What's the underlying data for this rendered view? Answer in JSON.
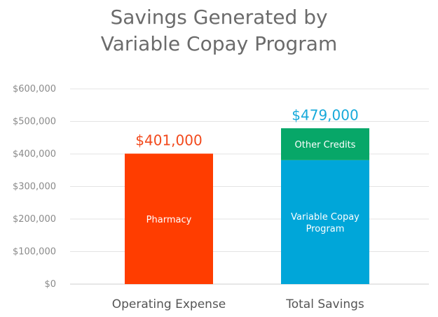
{
  "chart_data": {
    "type": "bar",
    "stacked": true,
    "title_lines": [
      "Savings Generated by",
      "Variable Copay Program"
    ],
    "xlabel": "",
    "ylabel": "",
    "ylim": [
      0,
      600000
    ],
    "y_ticks": [
      0,
      100000,
      200000,
      300000,
      400000,
      500000,
      600000
    ],
    "y_tick_labels": [
      "$0",
      "$100,000",
      "$200,000",
      "$300,000",
      "$400,000",
      "$500,000",
      "$600,000"
    ],
    "grid": true,
    "legend": "none",
    "categories": [
      "Operating Expense",
      "Total Savings"
    ],
    "bars": [
      {
        "category": "Operating Expense",
        "total_label": "$401,000",
        "total_color": "#f2491c",
        "segments": [
          {
            "label": "Pharmacy",
            "value": 401000,
            "color": "#ff3d00"
          }
        ]
      },
      {
        "category": "Total Savings",
        "total_label": "$479,000",
        "total_color": "#16a9da",
        "segments": [
          {
            "label": "Variable Copay Program",
            "value": 381000,
            "color": "#00a6d9"
          },
          {
            "label": "Other Credits",
            "value": 98000,
            "color": "#07a768"
          }
        ]
      }
    ]
  }
}
